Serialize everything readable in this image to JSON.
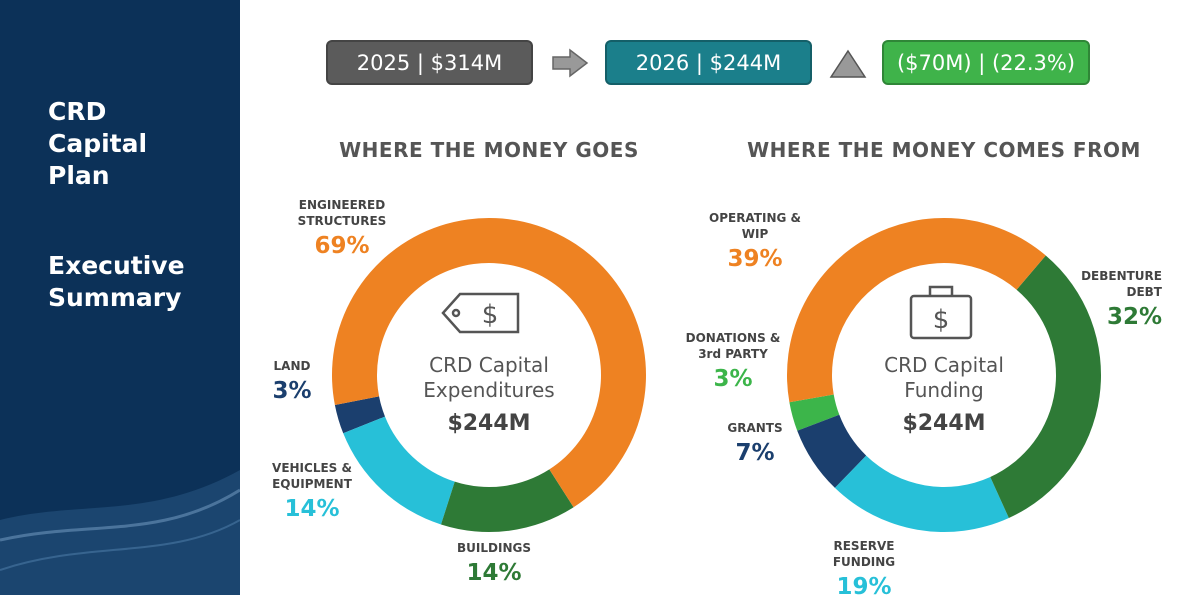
{
  "sidebar": {
    "title": "CRD Capital Plan",
    "subtitle": "Executive Summary"
  },
  "header": {
    "previous": "2025 | $314M",
    "current": "2026 | $244M",
    "change": "($70M) | (22.3%)"
  },
  "chart_data": [
    {
      "type": "pie",
      "title": "WHERE THE MONEY GOES",
      "center_label": "CRD Capital Expenditures",
      "center_value": "$244M",
      "categories": [
        "ENGINEERED STRUCTURES",
        "BUILDINGS",
        "VEHICLES & EQUIPMENT",
        "LAND"
      ],
      "values": [
        69,
        14,
        14,
        3
      ],
      "value_labels": [
        "69%",
        "14%",
        "14%",
        "3%"
      ],
      "colors": [
        "#ee8222",
        "#2e7a36",
        "#27c0d8",
        "#1b3f6e"
      ]
    },
    {
      "type": "pie",
      "title": "WHERE THE MONEY COMES FROM",
      "center_label": "CRD Capital Funding",
      "center_value": "$244M",
      "categories": [
        "OPERATING & WIP",
        "DEBENTURE DEBT",
        "RESERVE FUNDING",
        "GRANTS",
        "DONATIONS & 3rd PARTY"
      ],
      "values": [
        39,
        32,
        19,
        7,
        3
      ],
      "value_labels": [
        "39%",
        "32%",
        "19%",
        "7%",
        "3%"
      ],
      "colors": [
        "#ee8222",
        "#2e7a36",
        "#27c0d8",
        "#1b3f6e",
        "#3cb54a"
      ]
    }
  ]
}
